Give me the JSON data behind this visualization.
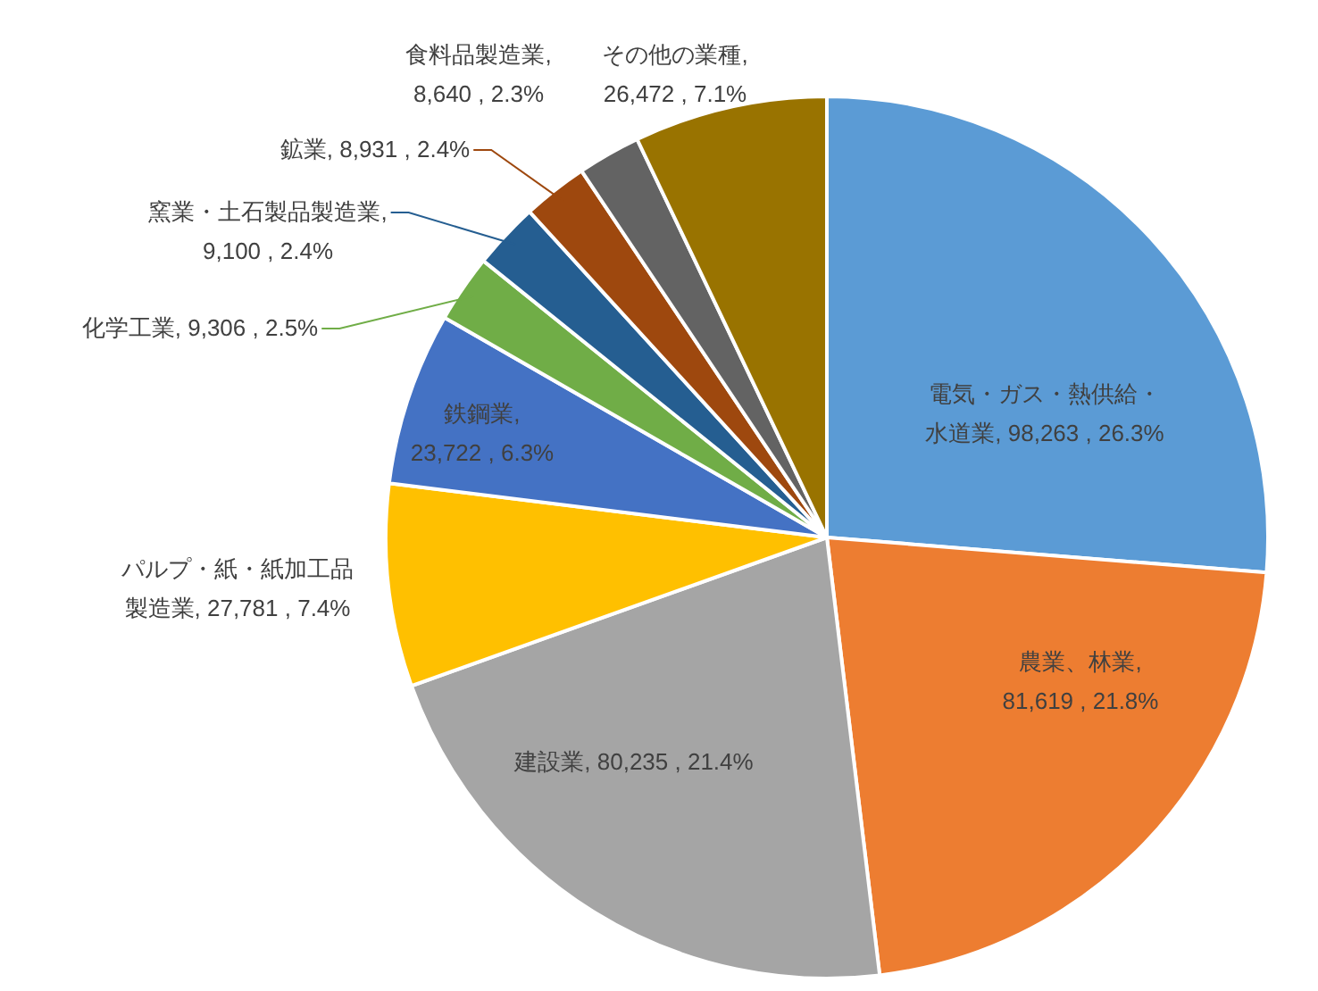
{
  "chart_data": {
    "type": "pie",
    "categories": [
      "電気・ガス・熱供給・水道業",
      "農業、林業",
      "建設業",
      "パルプ・紙・紙加工品製造業",
      "鉄鋼業",
      "化学工業",
      "窯業・土石製品製造業",
      "鉱業",
      "食料品製造業",
      "その他の業種"
    ],
    "values": [
      98263,
      81619,
      80235,
      27781,
      23722,
      9306,
      9100,
      8931,
      8640,
      26472
    ],
    "value_labels": [
      ", 98,263 , 26.3%",
      ", 81,619 , 21.8%",
      ", 80,235 , 21.4%",
      ", 27,781 , 7.4%",
      ", 23,722 , 6.3%",
      ", 9,306 , 2.5%",
      ", 9,100 , 2.4%",
      ", 8,931 , 2.4%",
      ", 8,640 , 2.3%",
      ", 26,472 , 7.1%"
    ],
    "colors": [
      "#5b9bd5",
      "#ed7d31",
      "#a5a5a5",
      "#ffc000",
      "#4472c4",
      "#70ad47",
      "#255e91",
      "#9e480e",
      "#636363",
      "#997300"
    ],
    "legend": false
  }
}
